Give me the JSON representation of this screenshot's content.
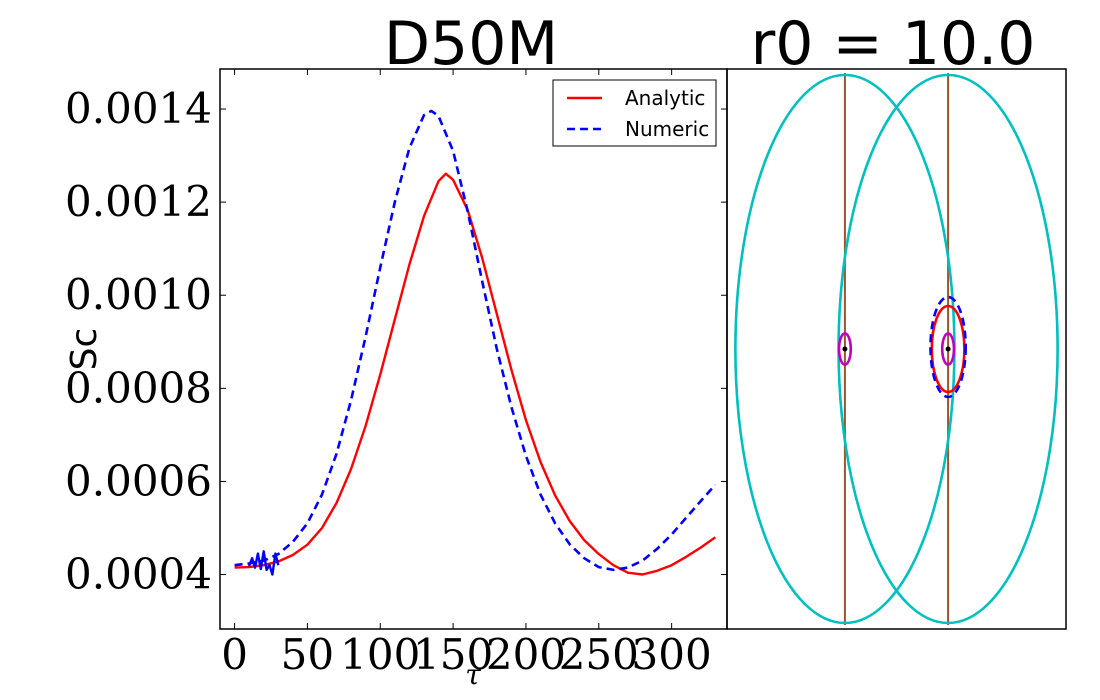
{
  "titles": {
    "left": "D50M",
    "right": "r0 = 10.0"
  },
  "chart_data": [
    {
      "type": "line",
      "xlabel": "τ",
      "ylabel": "Sc",
      "xlim": [
        -10,
        338
      ],
      "ylim": [
        0.000283,
        0.001486
      ],
      "xticks": [
        0,
        50,
        100,
        150,
        200,
        250,
        300
      ],
      "xtick_labels": [
        "0",
        "50",
        "100",
        "150",
        "200",
        "250",
        "300"
      ],
      "yticks": [
        0.0004,
        0.0006,
        0.0008,
        0.001,
        0.0012,
        0.0014
      ],
      "ytick_labels": [
        "0.0004",
        "0.0006",
        "0.0008",
        "0.0010",
        "0.0012",
        "0.0014"
      ],
      "legend_position": "top-right",
      "grid": false,
      "series": [
        {
          "name": "Analytic",
          "color": "#ff0000",
          "dash": "solid",
          "x": [
            0,
            10,
            20,
            30,
            40,
            50,
            60,
            70,
            80,
            90,
            100,
            110,
            120,
            130,
            140,
            145,
            150,
            160,
            170,
            180,
            190,
            200,
            210,
            220,
            230,
            240,
            250,
            260,
            270,
            280,
            290,
            300,
            310,
            320,
            330
          ],
          "y": [
            0.000415,
            0.000416,
            0.00042,
            0.000428,
            0.000442,
            0.000464,
            0.0005,
            0.000554,
            0.000627,
            0.00072,
            0.00083,
            0.000948,
            0.001066,
            0.00117,
            0.001245,
            0.001261,
            0.001248,
            0.001183,
            0.00108,
            0.00096,
            0.00084,
            0.000732,
            0.000642,
            0.00057,
            0.000515,
            0.000474,
            0.000444,
            0.00042,
            0.000404,
            0.0004,
            0.000408,
            0.00042,
            0.000438,
            0.000458,
            0.00048
          ]
        },
        {
          "name": "Numeric",
          "color": "#0000ff",
          "dash": "dashed",
          "x": [
            0,
            10,
            20,
            30,
            40,
            50,
            60,
            70,
            80,
            90,
            100,
            110,
            120,
            130,
            135,
            140,
            150,
            160,
            170,
            180,
            190,
            200,
            210,
            220,
            230,
            240,
            250,
            260,
            270,
            280,
            290,
            300,
            310,
            320,
            330
          ],
          "y": [
            0.00042,
            0.000424,
            0.00043,
            0.000444,
            0.00047,
            0.00051,
            0.000572,
            0.00066,
            0.000775,
            0.000912,
            0.00106,
            0.0012,
            0.001316,
            0.001387,
            0.001396,
            0.001385,
            0.00131,
            0.00118,
            0.00103,
            0.000885,
            0.00076,
            0.000655,
            0.000572,
            0.00051,
            0.000465,
            0.000435,
            0.000416,
            0.00041,
            0.000415,
            0.00043,
            0.000455,
            0.000486,
            0.000522,
            0.000558,
            0.000593
          ]
        },
        {
          "name": "",
          "color": "#0000ff",
          "dash": "solid",
          "x": [
            10,
            12,
            14,
            16,
            18,
            20,
            22,
            24,
            26,
            28,
            30
          ],
          "y": [
            0.000418,
            0.000435,
            0.000415,
            0.000445,
            0.000412,
            0.00045,
            0.00041,
            0.00042,
            0.0004,
            0.000445,
            0.00042
          ]
        }
      ]
    },
    {
      "type": "orbit-diagram",
      "xlim": [
        -1.3,
        1.3
      ],
      "ylim": [
        -1.4,
        1.4
      ],
      "ellipses": [
        {
          "role": "outer-left",
          "cx": -0.3957,
          "cy": 0,
          "rx": 0.84,
          "ry": 1.37,
          "color": "#00bfbf",
          "dash": "solid"
        },
        {
          "role": "outer-right",
          "cx": 0.3957,
          "cy": 0,
          "rx": 0.84,
          "ry": 1.37,
          "color": "#00bfbf",
          "dash": "solid"
        },
        {
          "role": "inner-left-magenta",
          "cx": -0.3957,
          "cy": 0,
          "rx": 0.045,
          "ry": 0.078,
          "color": "#bf00bf",
          "dash": "solid"
        },
        {
          "role": "inner-right-magenta",
          "cx": 0.3957,
          "cy": 0,
          "rx": 0.045,
          "ry": 0.078,
          "color": "#bf00bf",
          "dash": "solid"
        },
        {
          "role": "analytic-orbit",
          "cx": 0.3957,
          "cy": 0,
          "rx": 0.125,
          "ry": 0.215,
          "color": "#ff0000",
          "dash": "solid"
        },
        {
          "role": "numeric-orbit",
          "cx": 0.3957,
          "cy": 0.01,
          "rx": 0.135,
          "ry": 0.25,
          "color": "#0000ff",
          "dash": "dashed"
        }
      ],
      "vertical_lines": [
        {
          "x": -0.3957,
          "color": "#a0522d"
        },
        {
          "x": 0.3957,
          "color": "#a0522d"
        }
      ],
      "points": [
        {
          "x": -0.3957,
          "y": 0
        },
        {
          "x": 0.3957,
          "y": 0
        }
      ]
    }
  ]
}
